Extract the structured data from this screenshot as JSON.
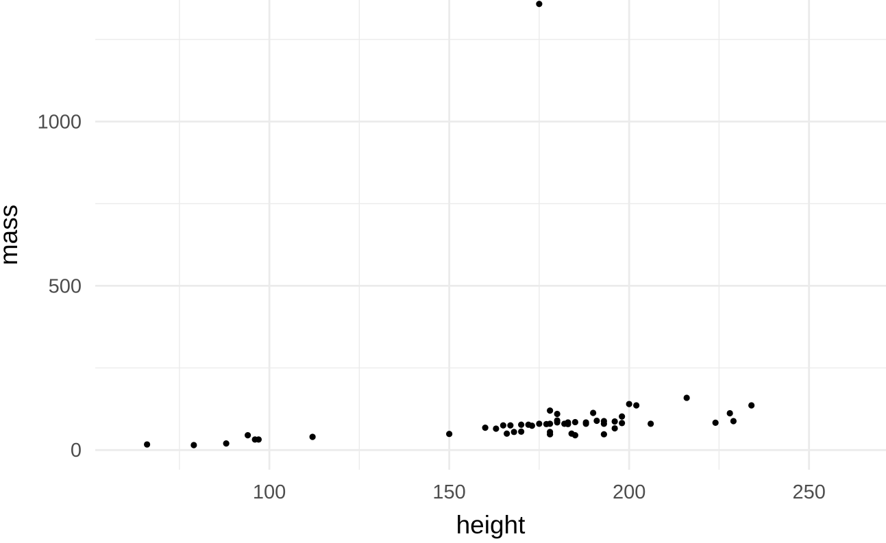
{
  "chart_data": {
    "type": "scatter",
    "title": "",
    "xlabel": "height",
    "ylabel": "mass",
    "xlim": [
      51.6,
      271.4
    ],
    "ylim": [
      -60,
      1370
    ],
    "x_ticks": [
      100,
      150,
      200,
      250
    ],
    "x_tick_labels": [
      "100",
      "150",
      "200",
      "250"
    ],
    "x_minor_ticks": [
      75,
      125,
      175,
      225
    ],
    "y_ticks": [
      0,
      500,
      1000
    ],
    "y_tick_labels": [
      "0",
      "500",
      "1000"
    ],
    "y_minor_ticks": [
      250,
      750,
      1250
    ],
    "grid": true,
    "legend": "none",
    "background_color": "#ffffff",
    "grid_color": "#ebebeb",
    "point_color": "#000000",
    "series": [
      {
        "x": [
          66,
          79,
          88,
          94,
          96,
          97,
          112,
          150,
          160,
          163,
          165,
          166,
          167,
          168,
          170,
          170,
          172,
          173,
          175,
          175,
          177,
          178,
          178,
          178,
          178,
          180,
          180,
          180,
          182,
          183,
          183,
          184,
          185,
          185,
          188,
          188,
          190,
          191,
          193,
          193,
          193,
          196,
          196,
          198,
          198,
          200,
          202,
          206,
          216,
          224,
          228,
          229,
          234
        ],
        "y": [
          17,
          15,
          20,
          45,
          32,
          32,
          40,
          49,
          68,
          65,
          75,
          50,
          75,
          55,
          56,
          77,
          77,
          74,
          80,
          1358,
          79,
          48,
          55,
          80,
          120,
          84,
          90,
          110,
          80,
          79,
          84,
          50,
          45,
          85,
          80,
          84,
          113,
          89,
          48,
          80,
          88,
          66,
          87,
          82,
          102,
          140,
          136,
          80,
          159,
          83,
          112,
          88,
          136
        ]
      }
    ]
  }
}
